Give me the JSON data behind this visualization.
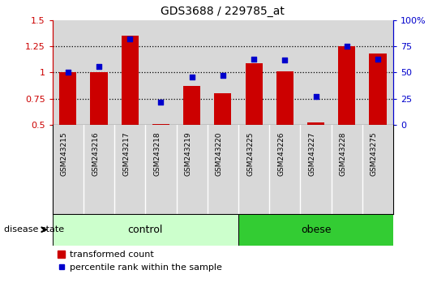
{
  "title": "GDS3688 / 229785_at",
  "samples": [
    "GSM243215",
    "GSM243216",
    "GSM243217",
    "GSM243218",
    "GSM243219",
    "GSM243220",
    "GSM243225",
    "GSM243226",
    "GSM243227",
    "GSM243228",
    "GSM243275"
  ],
  "bar_values": [
    1.0,
    1.0,
    1.35,
    0.51,
    0.87,
    0.8,
    1.09,
    1.01,
    0.52,
    1.25,
    1.18
  ],
  "scatter_values_pct": [
    50,
    56,
    82,
    22,
    46,
    47,
    63,
    62,
    27,
    75,
    63
  ],
  "ylim_left": [
    0.5,
    1.5
  ],
  "ylim_right": [
    0,
    100
  ],
  "yticks_left": [
    0.5,
    0.75,
    1.0,
    1.25,
    1.5
  ],
  "ytick_labels_left": [
    "0.5",
    "0.75",
    "1",
    "1.25",
    "1.5"
  ],
  "yticks_right": [
    0,
    25,
    50,
    75,
    100
  ],
  "ytick_labels_right": [
    "0",
    "25",
    "50",
    "75",
    "100%"
  ],
  "bar_color": "#cc0000",
  "scatter_color": "#0000cc",
  "bar_width": 0.55,
  "groups": [
    {
      "label": "control",
      "indices": [
        0,
        1,
        2,
        3,
        4,
        5
      ],
      "color": "#ccffcc"
    },
    {
      "label": "obese",
      "indices": [
        6,
        7,
        8,
        9,
        10
      ],
      "color": "#33cc33"
    }
  ],
  "disease_state_label": "disease state",
  "legend_bar_label": "transformed count",
  "legend_scatter_label": "percentile rank within the sample",
  "grid_dotted_values": [
    0.75,
    1.0,
    1.25
  ],
  "plot_bg_color": "#d8d8d8",
  "label_bg_color": "#d8d8d8",
  "white": "#ffffff",
  "black": "#000000"
}
